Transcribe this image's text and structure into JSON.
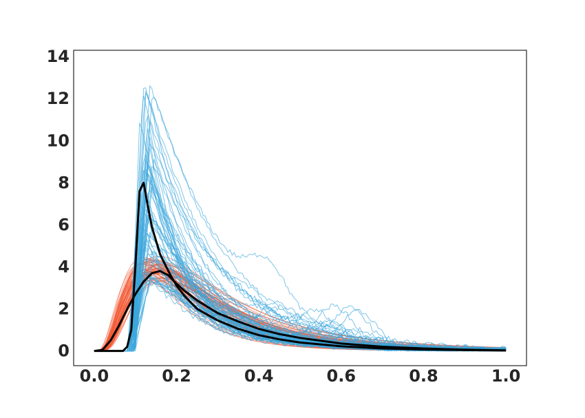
{
  "chart_data": {
    "type": "line",
    "title": "",
    "xlabel": "",
    "ylabel": "",
    "xlim": [
      -0.05,
      1.05
    ],
    "ylim": [
      -0.7,
      14.3
    ],
    "grid": false,
    "legend": "none",
    "xticks": [
      0.0,
      0.2,
      0.4,
      0.6,
      0.8,
      1.0
    ],
    "xtick_labels": [
      "0.0",
      "0.2",
      "0.4",
      "0.6",
      "0.8",
      "1.0"
    ],
    "yticks": [
      0,
      2,
      4,
      6,
      8,
      10,
      12,
      14
    ],
    "ytick_labels": [
      "0",
      "2",
      "4",
      "6",
      "8",
      "10",
      "12",
      "14"
    ],
    "colors": {
      "blue_family": "#3aa6dc",
      "red_family": "#f2542d",
      "mean_curve": "#000000",
      "axes": "#262626"
    },
    "series": [
      {
        "color": "#000000",
        "x": [
          0.0,
          0.02,
          0.05,
          0.07,
          0.08,
          0.09,
          0.1,
          0.11,
          0.12,
          0.13,
          0.14,
          0.16,
          0.18,
          0.2,
          0.22,
          0.25,
          0.3,
          0.35,
          0.4,
          0.45,
          0.5,
          0.6,
          0.7,
          0.8,
          0.9,
          1.0
        ],
        "values": [
          0.0,
          0.0,
          0.0,
          0.0,
          0.2,
          1.0,
          4.0,
          7.6,
          8.0,
          6.9,
          5.9,
          4.6,
          3.8,
          3.1,
          2.6,
          2.0,
          1.45,
          1.05,
          0.75,
          0.55,
          0.4,
          0.22,
          0.12,
          0.07,
          0.04,
          0.02
        ]
      },
      {
        "color": "#000000",
        "x": [
          0.0,
          0.02,
          0.04,
          0.06,
          0.08,
          0.1,
          0.12,
          0.14,
          0.16,
          0.18,
          0.2,
          0.22,
          0.25,
          0.3,
          0.35,
          0.4,
          0.45,
          0.5,
          0.6,
          0.7,
          0.8,
          0.9,
          1.0
        ],
        "values": [
          0.0,
          0.05,
          0.5,
          1.2,
          2.0,
          2.7,
          3.3,
          3.7,
          3.8,
          3.6,
          3.2,
          2.85,
          2.4,
          1.8,
          1.4,
          1.05,
          0.8,
          0.62,
          0.35,
          0.2,
          0.12,
          0.06,
          0.03
        ]
      }
    ]
  }
}
